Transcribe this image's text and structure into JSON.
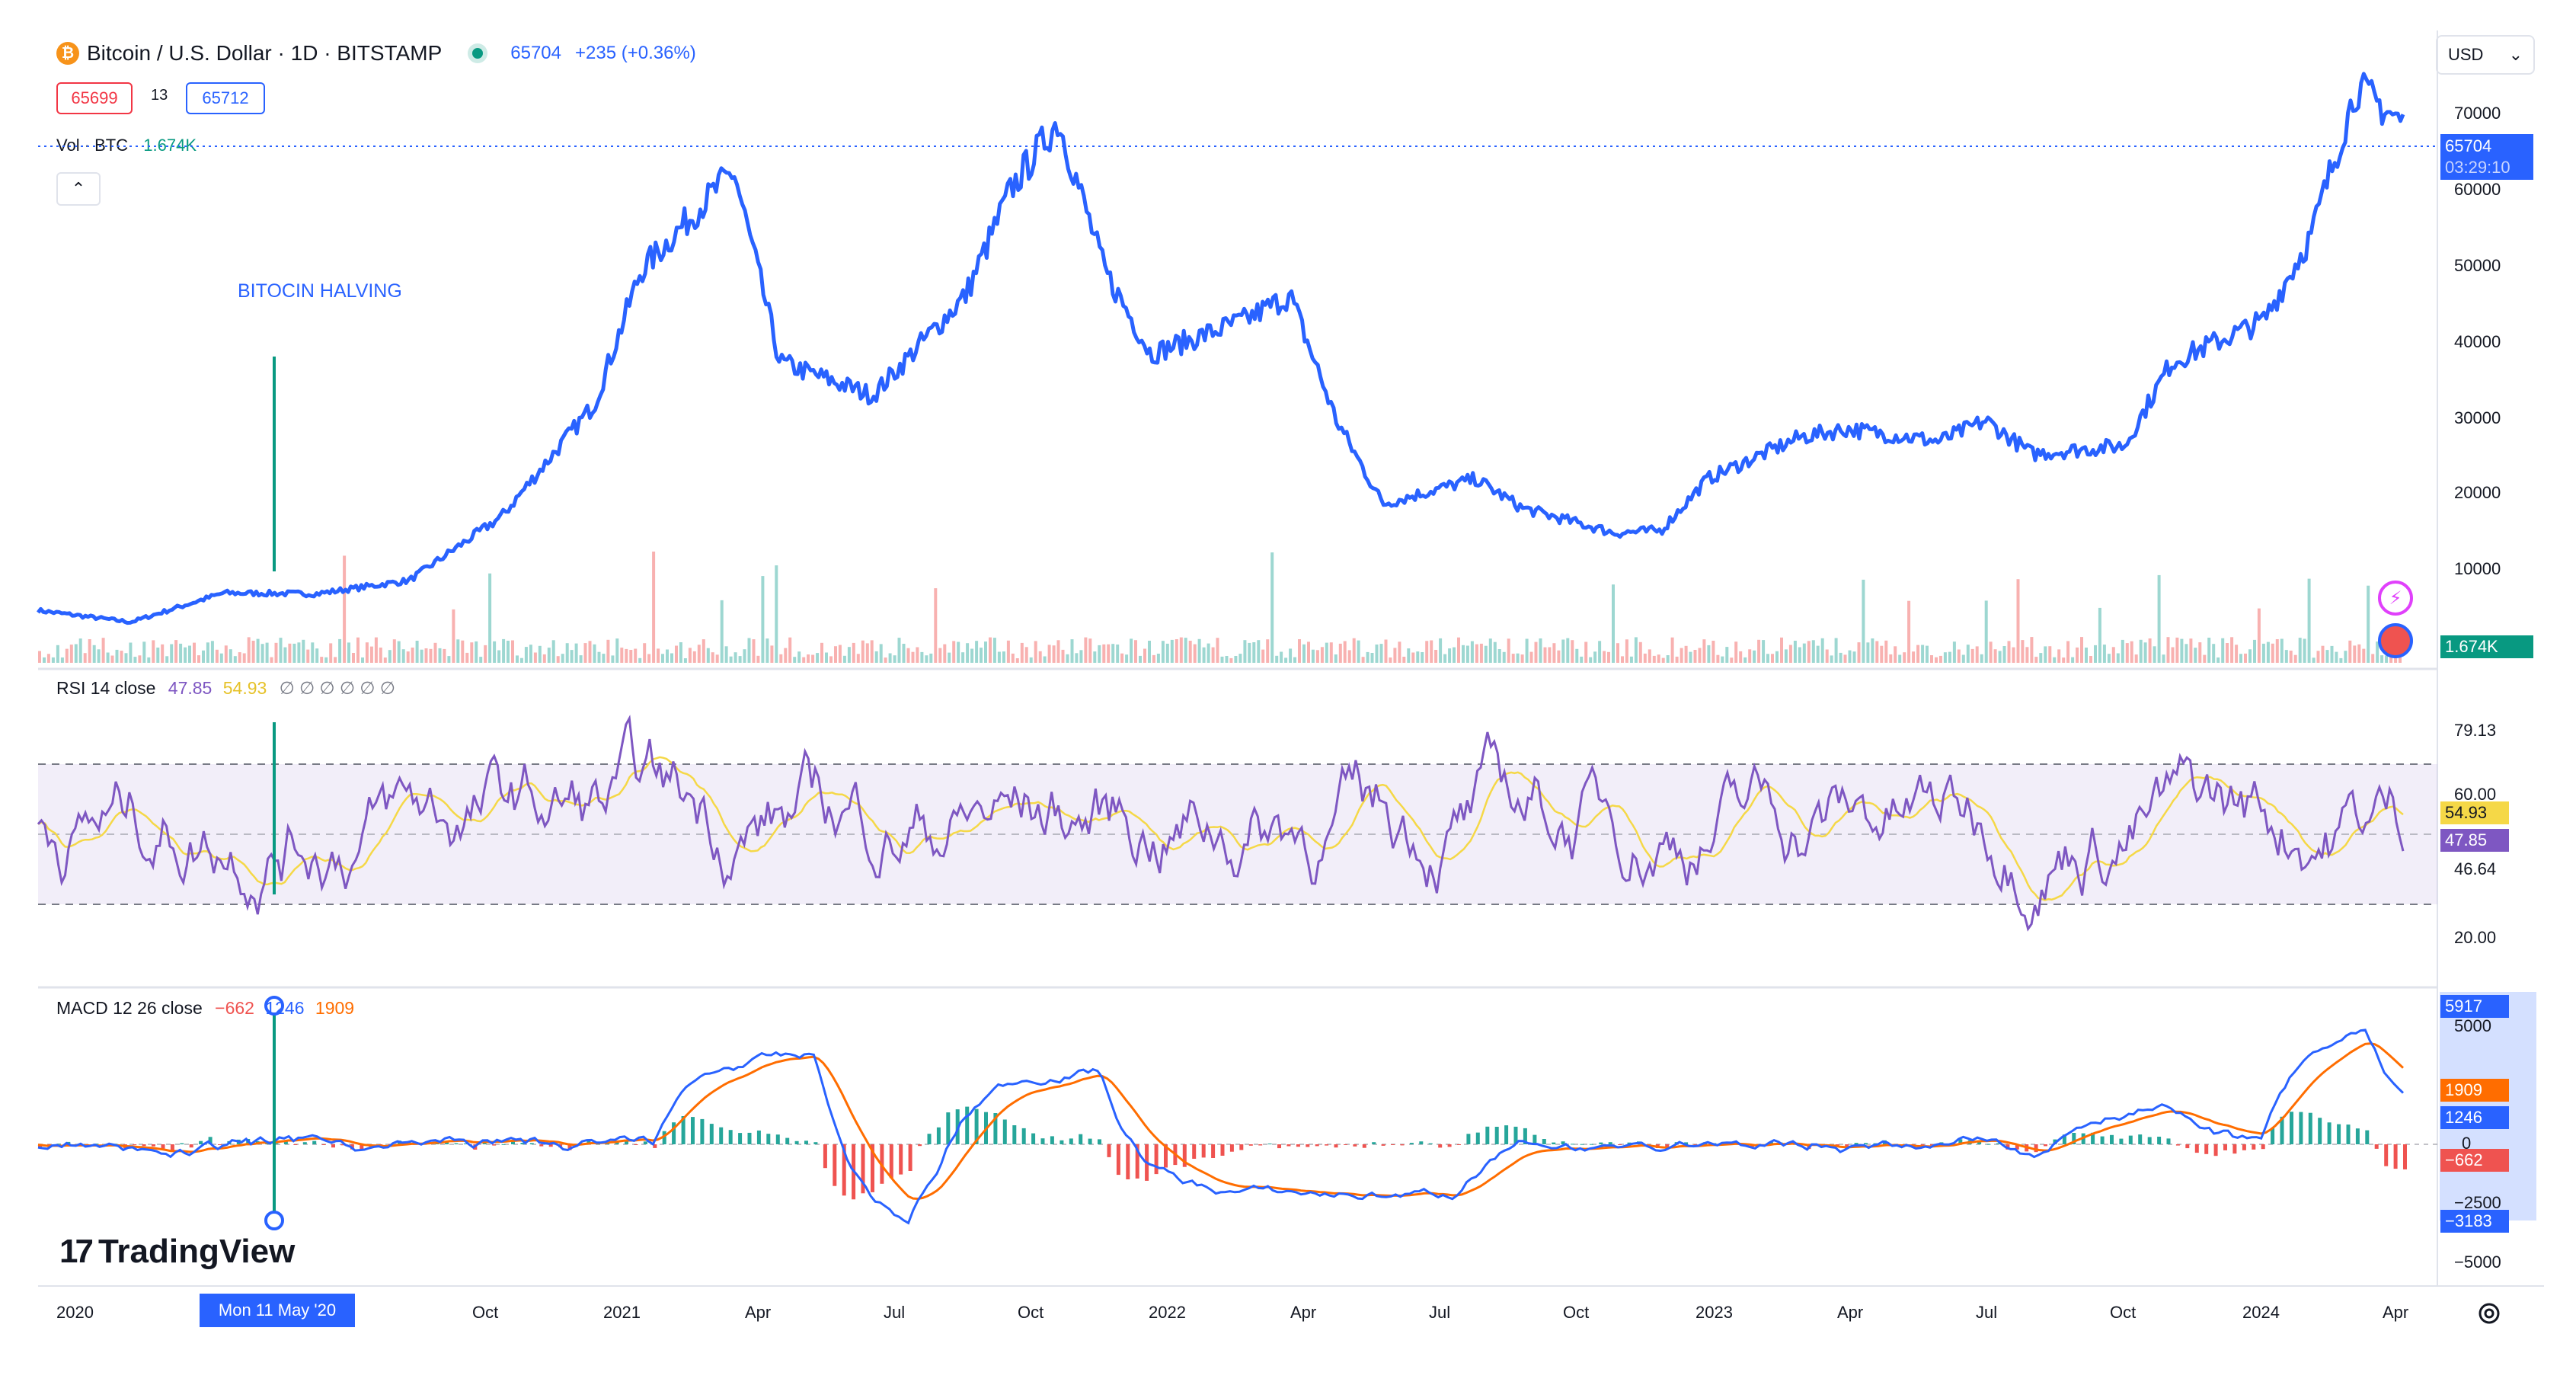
{
  "header": {
    "symbol": "Bitcoin / U.S. Dollar · 1D · BITSTAMP",
    "coin_glyph": "₿",
    "last_price": "65704",
    "change": "+235 (+0.36%)",
    "bid": "65699",
    "spread": "13",
    "ask": "65712",
    "currency": "USD",
    "currency_caret": "⌄"
  },
  "colors": {
    "price_line": "#2962ff",
    "rsi_line": "#7e57c2",
    "rsi_ma": "#f5d847",
    "macd_line": "#2962ff",
    "signal_line": "#ff6d00",
    "hist_up": "#26a69a",
    "hist_down": "#ef5350",
    "halving_line": "#089981"
  },
  "volume": {
    "label": "Vol · BTC",
    "value": "1.674K",
    "tag": "1.674K",
    "collapse_glyph": "⌃"
  },
  "annotation": {
    "text": "BITOCIN HALVING"
  },
  "price_axis": {
    "ticks": [
      "70000",
      "60000",
      "50000",
      "40000",
      "30000",
      "20000",
      "10000"
    ],
    "last_tag": "65704",
    "countdown": "03:29:10"
  },
  "rsi": {
    "label": "RSI 14 close",
    "value": "47.85",
    "ma_value": "54.93",
    "extra": "∅ ∅ ∅ ∅ ∅ ∅",
    "ticks": [
      "79.13",
      "60.00",
      "46.64",
      "20.00"
    ],
    "tag_rsi": "47.85",
    "tag_ma": "54.93"
  },
  "macd": {
    "label": "MACD 12 26 close",
    "hist_value": "−662",
    "macd_value": "1246",
    "signal_value": "1909",
    "ticks": [
      "5000",
      "0",
      "−2500",
      "−5000"
    ],
    "tag_top": "5917",
    "tag_signal": "1909",
    "tag_macd": "1246",
    "tag_hist": "−662",
    "tag_bottom": "−3183"
  },
  "time_axis": {
    "labels": [
      "2020",
      "Oct",
      "2021",
      "Apr",
      "Jul",
      "Oct",
      "2022",
      "Apr",
      "Jul",
      "Oct",
      "2023",
      "Apr",
      "Jul",
      "Oct",
      "2024",
      "Apr"
    ],
    "cursor_date": "Mon 11 May '20"
  },
  "branding": {
    "logo_mark": "17",
    "logo_text": "TradingView"
  },
  "chart_data": {
    "type": "line",
    "symbol": "BTCUSD",
    "x_dates": [
      "2020-01",
      "2020-03",
      "2020-05",
      "2020-07",
      "2020-09",
      "2020-11",
      "2021-01",
      "2021-02",
      "2021-04",
      "2021-05",
      "2021-06",
      "2021-07",
      "2021-09",
      "2021-10",
      "2021-11",
      "2021-12",
      "2022-01",
      "2022-03",
      "2022-04",
      "2022-05",
      "2022-06",
      "2022-08",
      "2022-09",
      "2022-11",
      "2022-12",
      "2023-01",
      "2023-03",
      "2023-04",
      "2023-06",
      "2023-07",
      "2023-08",
      "2023-10",
      "2023-11",
      "2024-01",
      "2024-02",
      "2024-03",
      "2024-04"
    ],
    "series": [
      {
        "values": [
          7200,
          5800,
          9300,
          9200,
          10800,
          18500,
          32000,
          48000,
          60000,
          37000,
          35000,
          33000,
          45000,
          58000,
          66000,
          48000,
          38000,
          42000,
          45000,
          30000,
          20000,
          23000,
          19500,
          16500,
          16800,
          23000,
          28000,
          29000,
          27500,
          30000,
          26000,
          27000,
          37000,
          42000,
          52000,
          70000,
          65704
        ]
      }
    ],
    "ylim": [
      0,
      75000
    ],
    "annotation": {
      "label": "BITOCIN HALVING",
      "date": "2020-05-11"
    }
  }
}
